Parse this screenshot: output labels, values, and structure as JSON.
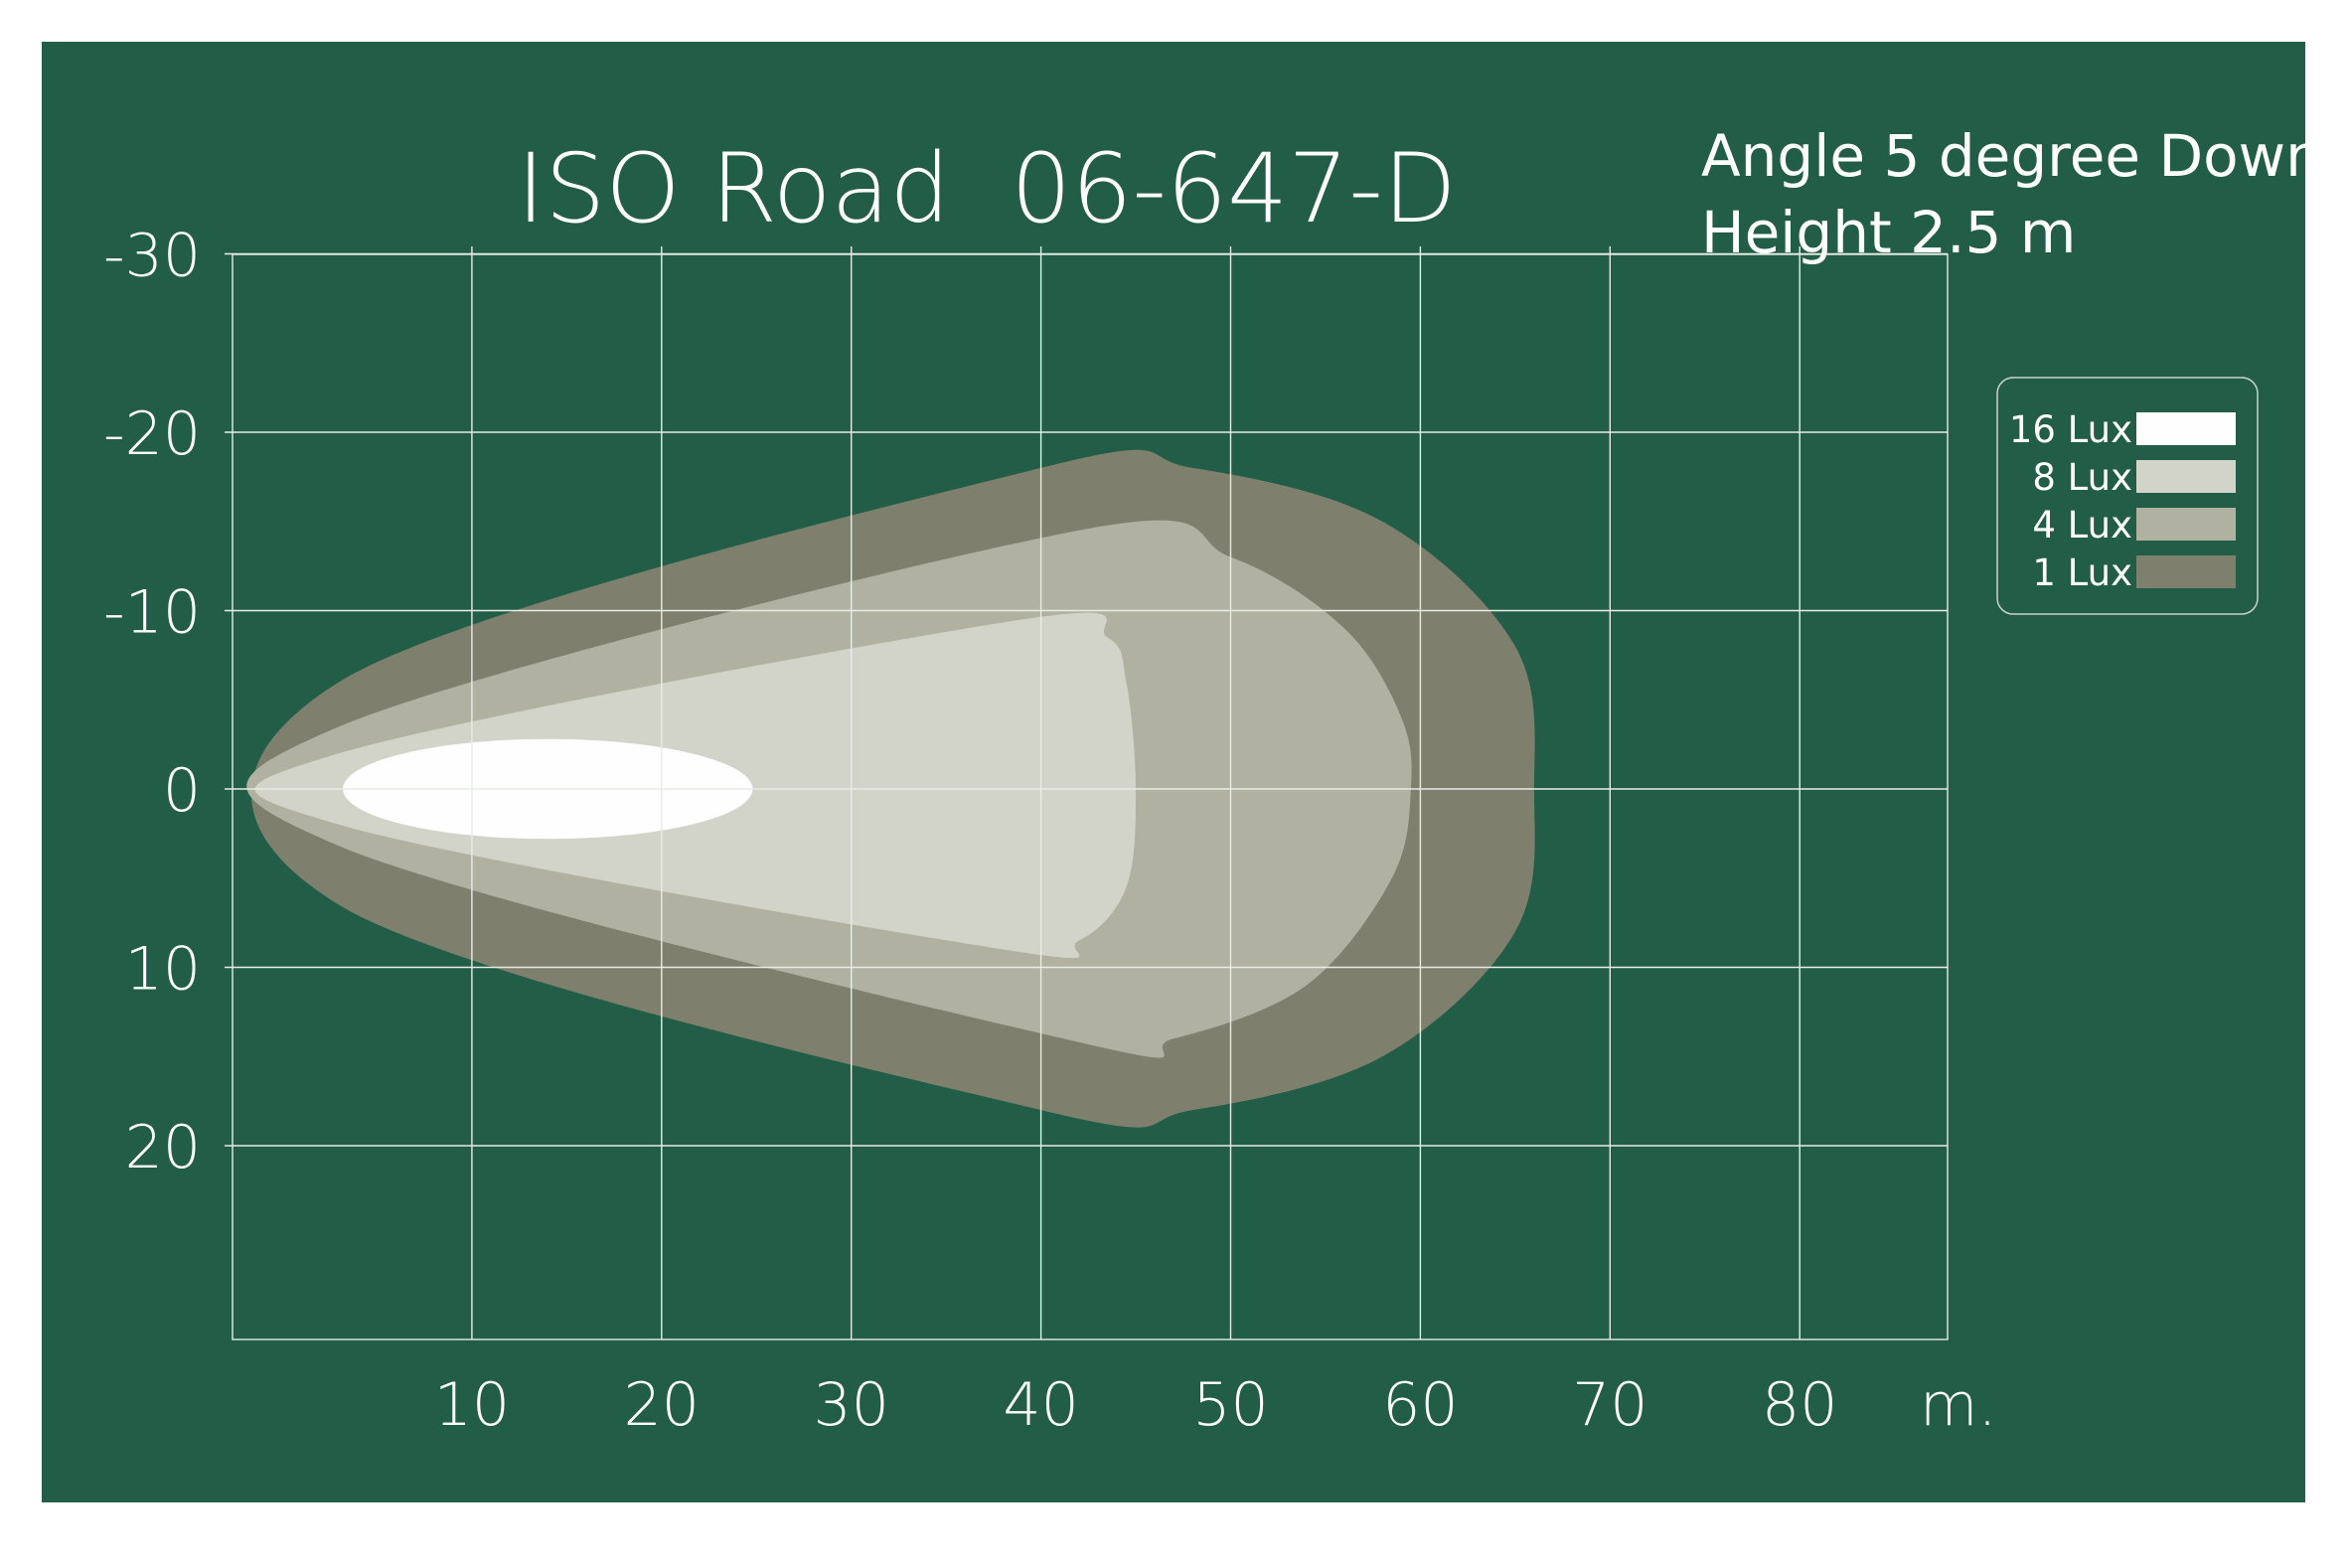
{
  "chart_data": {
    "type": "area",
    "title": "ISO Road  06-647-D",
    "notes": [
      "Angle 5 degree Down",
      "Height 2.5 m"
    ],
    "x_unit_label": "m.",
    "x_ticks": [
      10,
      20,
      30,
      40,
      50,
      60,
      70,
      80
    ],
    "y_ticks": [
      -30,
      -20,
      -10,
      0,
      10,
      20
    ],
    "xlim": [
      0,
      90
    ],
    "ylim": [
      -30,
      30
    ],
    "y_axis_inverted": true,
    "grid": true,
    "legend_position": "right",
    "legend": [
      {
        "label": "16 Lux",
        "color": "#fefefe"
      },
      {
        "label": "8 Lux",
        "color": "#d2d4ca"
      },
      {
        "label": "4 Lux",
        "color": "#b0b1a0"
      },
      {
        "label": "1 Lux",
        "color": "#7e7f6c"
      }
    ],
    "series": [
      {
        "name": "1 Lux",
        "color": "#7e7f6c",
        "outline": [
          [
            3,
            -6
          ],
          [
            40,
            -18
          ],
          [
            48,
            -18
          ],
          [
            58,
            -15
          ],
          [
            65,
            -8
          ],
          [
            66,
            0
          ],
          [
            65,
            8
          ],
          [
            58,
            15
          ],
          [
            48,
            18
          ],
          [
            40,
            18
          ],
          [
            3,
            6.5
          ]
        ]
      },
      {
        "name": "4 Lux",
        "color": "#b0b1a0",
        "outline": [
          [
            3,
            -3.5
          ],
          [
            42,
            -14.5
          ],
          [
            50,
            -13
          ],
          [
            56,
            -9
          ],
          [
            59,
            -4
          ],
          [
            59.5,
            0
          ],
          [
            58.5,
            5
          ],
          [
            54,
            11
          ],
          [
            47,
            14
          ],
          [
            42,
            14.2
          ],
          [
            3,
            3.2
          ]
        ]
      },
      {
        "name": "8 Lux",
        "color": "#d2d4ca",
        "outline": [
          [
            3,
            -2
          ],
          [
            39,
            -9.5
          ],
          [
            43.5,
            -8.5
          ],
          [
            44.5,
            -6
          ],
          [
            45,
            0
          ],
          [
            44.5,
            5.5
          ],
          [
            42,
            8.5
          ],
          [
            38,
            9
          ],
          [
            3,
            2
          ]
        ]
      },
      {
        "name": "16 Lux",
        "color": "#fefefe",
        "ellipse": {
          "cx": 14,
          "cy": 0,
          "rx": 10.8,
          "ry": 2.8
        }
      }
    ]
  }
}
